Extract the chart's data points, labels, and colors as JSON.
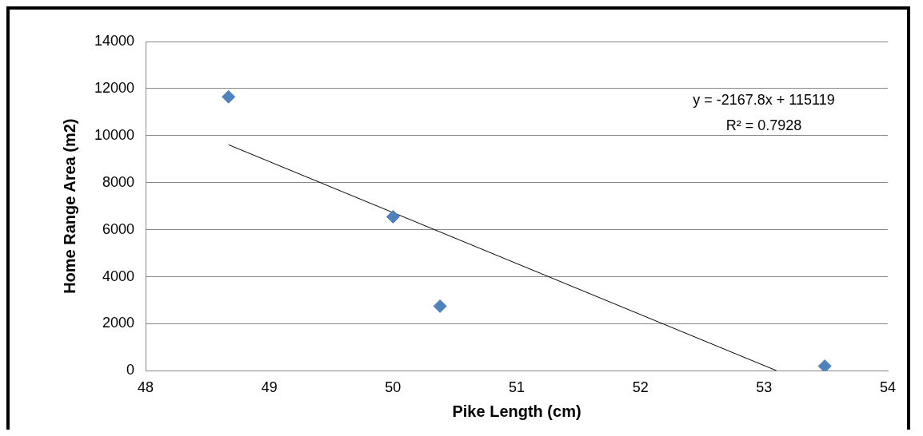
{
  "chart_data": {
    "type": "scatter",
    "xlabel": "Pike Length (cm)",
    "ylabel": "Home Range Area (m2)",
    "xlim": [
      48,
      54
    ],
    "xticks": [
      48,
      49,
      50,
      51,
      52,
      53,
      54
    ],
    "ylim": [
      0,
      14000
    ],
    "yticks": [
      0,
      2000,
      4000,
      6000,
      8000,
      10000,
      12000,
      14000
    ],
    "grid": "y",
    "marker": "diamond",
    "series": [
      {
        "color": "#4f81bd",
        "x": [
          48.67,
          50.0,
          50.38,
          53.49
        ],
        "values": [
          11650,
          6550,
          2750,
          200
        ]
      },
      {
        "type": "line",
        "color": "#000000",
        "marker": "none",
        "x": [
          48.67,
          53.1
        ],
        "values": [
          9612,
          9
        ]
      }
    ],
    "annotations": [
      "y = -2167.8x + 115119",
      "R² = 0.7928"
    ]
  }
}
